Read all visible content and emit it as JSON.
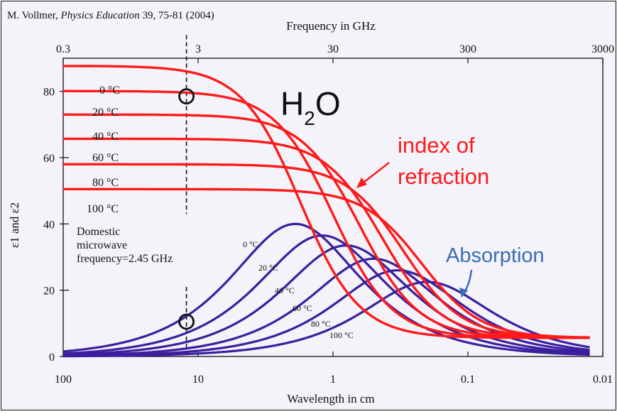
{
  "citation": {
    "author": "M. Vollmer, ",
    "journal": "Physics Education",
    "rest": " 39, 75-81 (2004)"
  },
  "chart_data": {
    "type": "line",
    "xlabel_top": "Frequency in GHz",
    "xlabel_bottom": "Wavelength in cm",
    "ylabel": "ε1 and ε2",
    "x_scale": "log",
    "xlim_wavelength_cm": [
      100,
      0.01
    ],
    "top_axis_ticks_GHz": [
      "0.3",
      "3",
      "30",
      "300",
      "3000"
    ],
    "bottom_axis_ticks_cm": [
      "100",
      "10",
      "1",
      "0.1",
      "0.01"
    ],
    "yticks": [
      "0",
      "20",
      "40",
      "60",
      "80"
    ],
    "ylim": [
      0,
      90
    ],
    "colors": {
      "refraction": "#ff1a1a",
      "absorption": "#3b1f9e",
      "annotation": "#3a6db5",
      "background": "#f3f3f9"
    },
    "annotations": {
      "molecule": "H",
      "molecule_sub": "2",
      "molecule_end": "O",
      "refraction_label_line1": "index of",
      "refraction_label_line2": "refraction",
      "absorption_label": "Absorption",
      "microwave_line1": "Domestic",
      "microwave_line2": "microwave",
      "microwave_line3": "frequency=2.45 GHz",
      "microwave_wavelength_cm": 12.2
    },
    "refraction_series": [
      {
        "name": "0 °C",
        "eps_static": 87.7,
        "eps_inf": 5.6,
        "relaxation_wavelength_cm": 1.75
      },
      {
        "name": "20 °C",
        "eps_static": 80.1,
        "eps_inf": 5.6,
        "relaxation_wavelength_cm": 1.0
      },
      {
        "name": "40 °C",
        "eps_static": 73.0,
        "eps_inf": 5.6,
        "relaxation_wavelength_cm": 0.63
      },
      {
        "name": "60 °C",
        "eps_static": 65.7,
        "eps_inf": 5.6,
        "relaxation_wavelength_cm": 0.43
      },
      {
        "name": "80 °C",
        "eps_static": 58.0,
        "eps_inf": 5.6,
        "relaxation_wavelength_cm": 0.3
      },
      {
        "name": "100 °C",
        "eps_static": 50.5,
        "eps_inf": 5.6,
        "relaxation_wavelength_cm": 0.22
      }
    ],
    "absorption_series": [
      {
        "name": "0 °C",
        "peak_value": 40.0,
        "peak_wavelength_cm": 1.9
      },
      {
        "name": "20 °C",
        "peak_value": 36.5,
        "peak_wavelength_cm": 1.2
      },
      {
        "name": "40 °C",
        "peak_value": 33.5,
        "peak_wavelength_cm": 0.8
      },
      {
        "name": "60 °C",
        "peak_value": 29.5,
        "peak_wavelength_cm": 0.5
      },
      {
        "name": "80 °C",
        "peak_value": 26.0,
        "peak_wavelength_cm": 0.33
      },
      {
        "name": "100 °C",
        "peak_value": 22.5,
        "peak_wavelength_cm": 0.2
      }
    ],
    "marked_points": [
      {
        "wavelength_cm": 12.2,
        "value": 78.5
      },
      {
        "wavelength_cm": 12.2,
        "value": 10.5
      }
    ]
  }
}
